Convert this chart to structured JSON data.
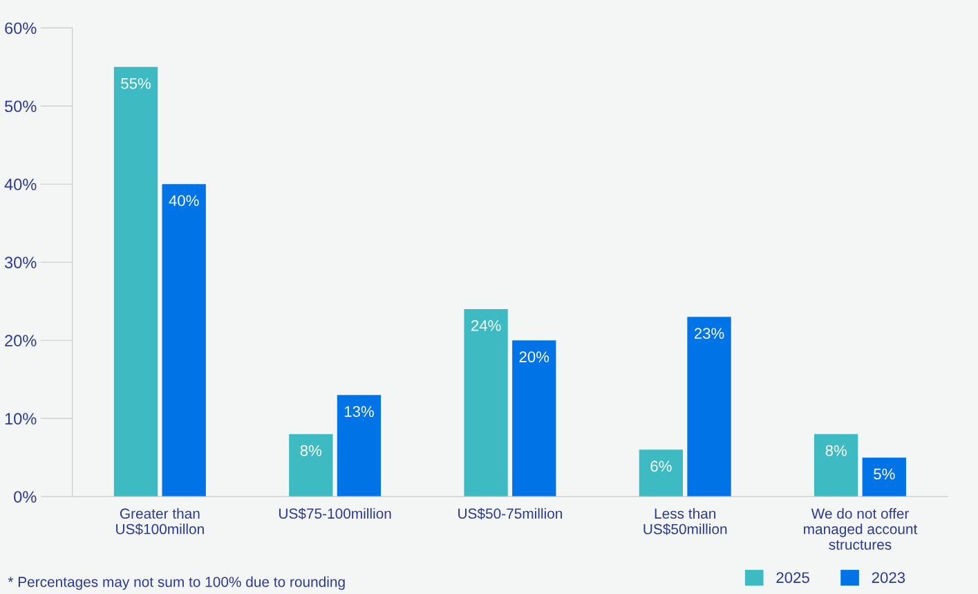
{
  "chart_data": {
    "type": "bar",
    "categories": [
      "Greater than\nUS$100millon",
      "US$75-100million",
      "US$50-75million",
      "Less than\nUS$50million",
      "We do not offer\nmanaged account\nstructures"
    ],
    "series": [
      {
        "name": "2025",
        "color": "#3dbac2",
        "values": [
          55,
          8,
          24,
          6,
          8
        ]
      },
      {
        "name": "2023",
        "color": "#0073e6",
        "values": [
          40,
          13,
          20,
          23,
          5
        ]
      }
    ],
    "ylim": [
      0,
      60
    ],
    "yticks": [
      {
        "value": 0,
        "label": "0%"
      },
      {
        "value": 10,
        "label": "10%"
      },
      {
        "value": 20,
        "label": "20%"
      },
      {
        "value": 30,
        "label": "30%"
      },
      {
        "value": 40,
        "label": "40%"
      },
      {
        "value": 50,
        "label": "50%"
      },
      {
        "value": 60,
        "label": "60%"
      }
    ],
    "value_labels": [
      [
        "55%",
        "8%",
        "24%",
        "6%",
        "8%"
      ],
      [
        "40%",
        "13%",
        "20%",
        "23%",
        "5%"
      ]
    ],
    "annotations": [
      "* Percentages may not sum to 100% due to rounding"
    ],
    "grid": false,
    "legend": "bottom right"
  }
}
